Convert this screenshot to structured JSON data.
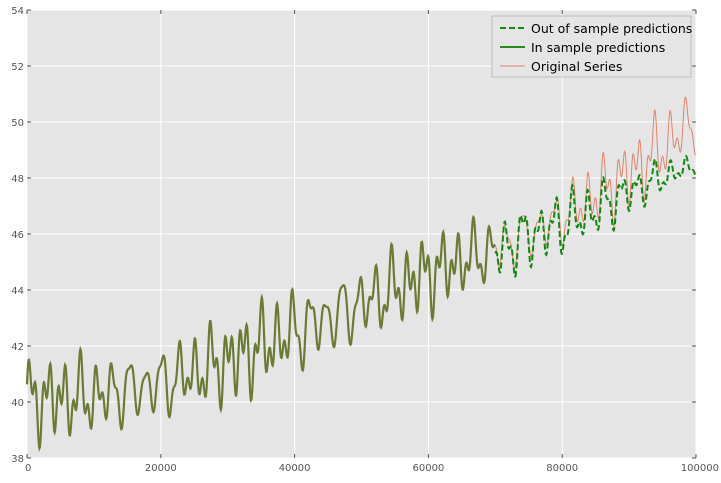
{
  "chart_data": {
    "type": "line",
    "title": "",
    "xlabel": "",
    "ylabel": "",
    "xlim": [
      0,
      100000
    ],
    "ylim": [
      38,
      54
    ],
    "x_ticks": [
      0,
      20000,
      40000,
      60000,
      80000,
      100000
    ],
    "x_tick_labels": [
      "0",
      "20000",
      "40000",
      "60000",
      "80000",
      "100000"
    ],
    "y_ticks": [
      38,
      40,
      42,
      44,
      46,
      48,
      50,
      52,
      54
    ],
    "y_tick_labels": [
      "38",
      "40",
      "42",
      "44",
      "46",
      "48",
      "50",
      "52",
      "54"
    ],
    "grid": true,
    "legend_position": "top-right",
    "style": "ggplot",
    "colors": {
      "plot_background": "#e5e5e5",
      "grid": "#ffffff",
      "in_sample": "#2a8a1e",
      "out_sample": "#118811",
      "original": "#e1836c",
      "overlap": "#6b7b35"
    },
    "series": [
      {
        "name": "Out of sample predictions",
        "line_style": "dashed",
        "color": "#118811",
        "x_range": [
          70000,
          100000
        ],
        "envelope_x": [
          70000,
          75000,
          80000,
          85000,
          90000,
          95000,
          100000
        ],
        "envelope_min": [
          43.9,
          44.6,
          45.0,
          45.6,
          46.5,
          47.3,
          48.0
        ],
        "envelope_max": [
          46.7,
          47.3,
          47.7,
          48.1,
          48.5,
          48.8,
          48.9
        ]
      },
      {
        "name": "In sample predictions",
        "line_style": "solid",
        "color": "#2a8a1e",
        "x_range": [
          0,
          70000
        ],
        "envelope_x": [
          0,
          10000,
          20000,
          30000,
          40000,
          50000,
          60000,
          70000
        ],
        "envelope_min": [
          38.3,
          38.4,
          38.8,
          39.6,
          40.5,
          41.6,
          42.9,
          43.9
        ],
        "envelope_max": [
          41.9,
          42.0,
          42.5,
          43.3,
          44.5,
          45.4,
          46.3,
          47.0
        ]
      },
      {
        "name": "Original Series",
        "line_style": "solid",
        "color": "#e1836c",
        "x_range": [
          0,
          100000
        ],
        "envelope_x": [
          0,
          10000,
          20000,
          30000,
          40000,
          50000,
          60000,
          70000,
          80000,
          90000,
          100000
        ],
        "envelope_min": [
          38.3,
          38.4,
          38.8,
          39.6,
          40.5,
          41.6,
          42.9,
          43.9,
          45.2,
          46.5,
          48.3
        ],
        "envelope_max": [
          41.9,
          42.0,
          42.5,
          43.3,
          44.5,
          45.4,
          46.3,
          47.0,
          48.0,
          49.8,
          51.8
        ]
      }
    ]
  }
}
